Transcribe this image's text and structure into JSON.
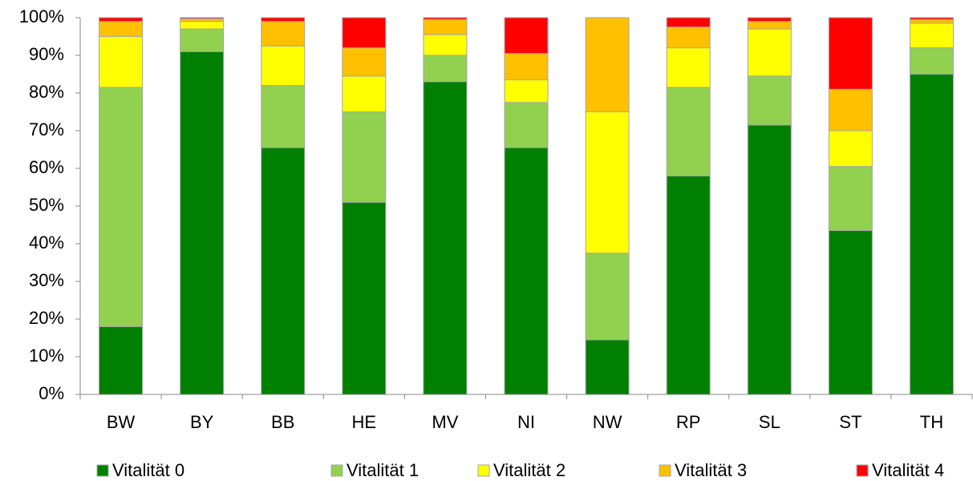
{
  "chart_data": {
    "type": "stacked_bar",
    "categories": [
      "BW",
      "BY",
      "BB",
      "HE",
      "MV",
      "NI",
      "NW",
      "RP",
      "SL",
      "ST",
      "TH"
    ],
    "series": [
      {
        "name": "Vitalität 0",
        "color": "#008000",
        "values": [
          18,
          91,
          65.5,
          51,
          83,
          65.5,
          14.5,
          58,
          71.5,
          43.5,
          85
        ]
      },
      {
        "name": "Vitalität 1",
        "color": "#92d050",
        "values": [
          63.5,
          6,
          16.5,
          24,
          7,
          12,
          23,
          23.5,
          13,
          17,
          7
        ]
      },
      {
        "name": "Vitalität 2",
        "color": "#ffff00",
        "values": [
          13.5,
          2,
          10.5,
          9.5,
          5.5,
          6,
          37.5,
          10.5,
          12.5,
          9.5,
          6.5
        ]
      },
      {
        "name": "Vitalität 3",
        "color": "#ffc000",
        "values": [
          4,
          0.7,
          6.5,
          7.5,
          4,
          7,
          25,
          5.5,
          2,
          11,
          1
        ]
      },
      {
        "name": "Vitalität 4",
        "color": "#ff0000",
        "values": [
          1,
          0.3,
          1,
          8,
          0.5,
          9.5,
          0,
          2.5,
          1,
          19,
          0.5
        ]
      }
    ],
    "ylim": [
      0,
      100
    ],
    "yticks": [
      {
        "value": 0,
        "label": "0%"
      },
      {
        "value": 10,
        "label": "10%"
      },
      {
        "value": 20,
        "label": "20%"
      },
      {
        "value": 30,
        "label": "30%"
      },
      {
        "value": 40,
        "label": "40%"
      },
      {
        "value": 50,
        "label": "50%"
      },
      {
        "value": 60,
        "label": "60%"
      },
      {
        "value": 70,
        "label": "70%"
      },
      {
        "value": 80,
        "label": "80%"
      },
      {
        "value": 90,
        "label": "90%"
      },
      {
        "value": 100,
        "label": "100%"
      }
    ],
    "grid": false,
    "legend": "bottom"
  }
}
